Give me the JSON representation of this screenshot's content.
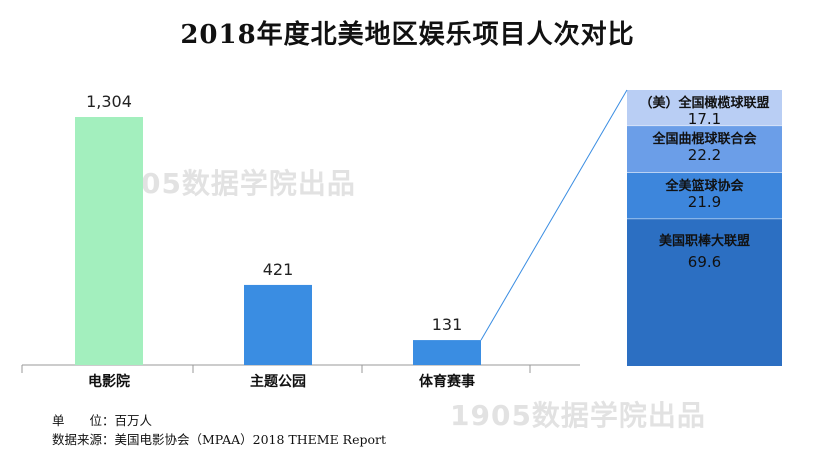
{
  "title": "2018年度北美地区娱乐项目人次对比",
  "footnote": {
    "unit": "单　　位：百万人",
    "source": "数据来源：美国电影协会（MPAA）2018 THEME Report"
  },
  "watermark": "1905数据学院出品",
  "colors": {
    "cinema": "#a3efbe",
    "bar": "#3a8de2",
    "stack_light": "#b9cef4",
    "stack_mid": "#6b9ee8",
    "stack_blue": "#3d86dc",
    "stack_dark": "#2c6fc2",
    "line": "#3a8de2"
  },
  "chart_data": {
    "type": "bar",
    "categories": [
      "电影院",
      "主题公园",
      "体育赛事"
    ],
    "values": [
      1304,
      421,
      131
    ],
    "value_labels": [
      "1,304",
      "421",
      "131"
    ],
    "breakdown": {
      "type": "stacked_bar",
      "of_category": "体育赛事",
      "segments": [
        {
          "name": "（美）全国橄榄球联盟",
          "value": 17.1
        },
        {
          "name": "全国曲棍球联合会",
          "value": 22.2
        },
        {
          "name": "全美篮球协会",
          "value": 21.9
        },
        {
          "name": "美国职棒大联盟",
          "value": 69.6
        }
      ]
    }
  }
}
